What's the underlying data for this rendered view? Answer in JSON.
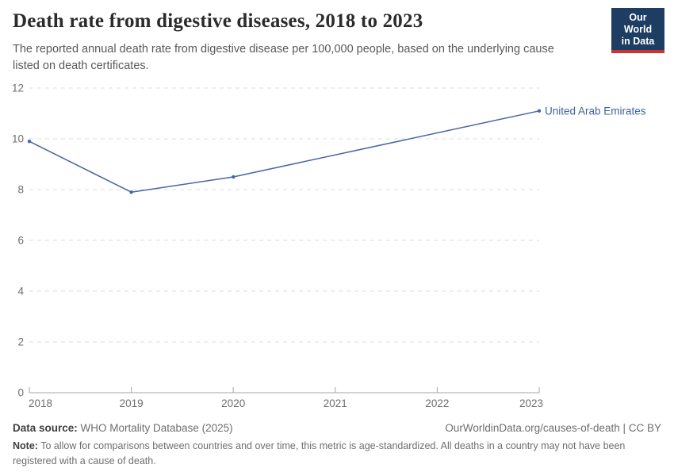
{
  "header": {
    "title": "Death rate from digestive diseases, 2018 to 2023",
    "subtitle": "The reported annual death rate from digestive disease per 100,000 people, based on the underlying cause listed on death certificates.",
    "logo": {
      "line1": "Our World",
      "line2": "in Data",
      "bg_color": "#1d3d63",
      "accent_color": "#cc3434"
    }
  },
  "chart_data": {
    "type": "line",
    "title": "Death rate from digestive diseases, 2018 to 2023",
    "xlabel": "",
    "ylabel": "",
    "x_min": 2018,
    "x_max": 2023,
    "x_ticks": [
      2018,
      2019,
      2020,
      2021,
      2022,
      2023
    ],
    "y_ticks": [
      0,
      2,
      4,
      6,
      8,
      10,
      12
    ],
    "ylim": [
      0,
      12
    ],
    "grid": "horizontal-dashed",
    "legend_position": "end-of-line-label",
    "series": [
      {
        "name": "United Arab Emirates",
        "color": "#4766a4",
        "label_color": "#3d639d",
        "points": [
          {
            "x": 2018,
            "y": 9.9
          },
          {
            "x": 2019,
            "y": 7.9
          },
          {
            "x": 2020,
            "y": 8.5
          },
          {
            "x": 2023,
            "y": 11.1
          }
        ]
      }
    ],
    "theme": {
      "grid_color": "#dcdcdc",
      "axis_color": "#a5a5a5",
      "tick_label_color": "#6e6e6e"
    }
  },
  "footer": {
    "datasource_label": "Data source:",
    "datasource_value": " WHO Mortality Database (2025)",
    "attribution": "OurWorldinData.org/causes-of-death | CC BY",
    "note_label": "Note:",
    "note_value": " To allow for comparisons between countries and over time, this metric is age-standardized. All deaths in a country may not have been registered with a cause of death."
  }
}
